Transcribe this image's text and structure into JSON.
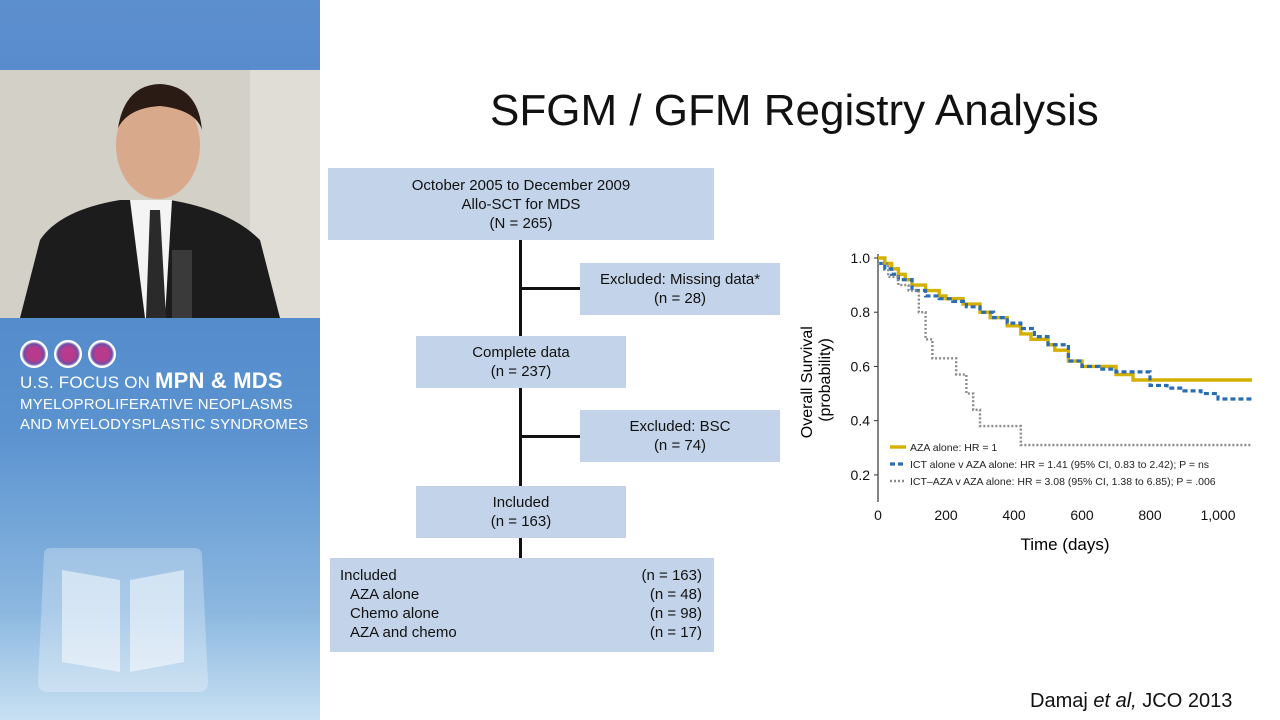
{
  "branding": {
    "line1_prefix": "U.S. FOCUS ON ",
    "line1_bold": "MPN & MDS",
    "line2": "MYELOPROLIFERATIVE NEOPLASMS",
    "line3": "AND MYELODYSPLASTIC SYNDROMES"
  },
  "slide": {
    "title": "SFGM / GFM Registry Analysis",
    "citation_author": "Damaj ",
    "citation_etal": "et al,",
    "citation_journal": " JCO 2013"
  },
  "flowchart": {
    "start": {
      "line1": "October 2005 to December 2009",
      "line2": "Allo-SCT for MDS",
      "line3": "(N = 265)"
    },
    "excluded_missing": {
      "line1": "Excluded: Missing data*",
      "line2": "(n = 28)"
    },
    "complete": {
      "line1": "Complete data",
      "line2": "(n = 237)"
    },
    "excluded_bsc": {
      "line1": "Excluded: BSC",
      "line2": "(n = 74)"
    },
    "included": {
      "line1": "Included",
      "line2": "(n = 163)"
    },
    "breakdown": [
      {
        "label": "Included",
        "count": "(n = 163)"
      },
      {
        "label": "AZA alone",
        "count": "(n = 48)"
      },
      {
        "label": "Chemo alone",
        "count": "(n = 98)"
      },
      {
        "label": "AZA and chemo",
        "count": "(n = 17)"
      }
    ]
  },
  "chart_data": {
    "type": "line",
    "xlabel": "Time (days)",
    "ylabel_line1": "Overall Survival",
    "ylabel_line2": "(probability)",
    "xlim": [
      0,
      1100
    ],
    "ylim": [
      0.1,
      1.0
    ],
    "x_ticks": [
      "0",
      "200",
      "400",
      "600",
      "800",
      "1,000"
    ],
    "x_tick_values": [
      0,
      200,
      400,
      600,
      800,
      1000
    ],
    "y_ticks": [
      "0.2",
      "0.4",
      "0.6",
      "0.8",
      "1.0"
    ],
    "y_tick_values": [
      0.2,
      0.4,
      0.6,
      0.8,
      1.0
    ],
    "legend_position": "bottom-left",
    "series": [
      {
        "name": "AZA alone: HR = 1",
        "color": "#d4b000",
        "style": "solid",
        "x": [
          0,
          20,
          40,
          60,
          80,
          100,
          140,
          180,
          200,
          250,
          300,
          330,
          380,
          420,
          450,
          500,
          520,
          560,
          600,
          650,
          700,
          750,
          800,
          900,
          1000,
          1100
        ],
        "y": [
          1.0,
          0.98,
          0.96,
          0.94,
          0.92,
          0.9,
          0.88,
          0.86,
          0.85,
          0.83,
          0.8,
          0.78,
          0.75,
          0.72,
          0.7,
          0.68,
          0.66,
          0.62,
          0.6,
          0.6,
          0.57,
          0.55,
          0.55,
          0.55,
          0.55,
          0.55
        ]
      },
      {
        "name": "ICT alone v AZA alone: HR = 1.41 (95% CI, 0.83 to 2.42); P = ns",
        "color": "#2a6db5",
        "style": "dashed",
        "x": [
          0,
          20,
          40,
          60,
          100,
          140,
          180,
          220,
          260,
          300,
          340,
          380,
          420,
          460,
          500,
          560,
          600,
          650,
          700,
          750,
          800,
          850,
          900,
          950,
          1000,
          1050,
          1100
        ],
        "y": [
          0.98,
          0.96,
          0.94,
          0.92,
          0.88,
          0.86,
          0.85,
          0.84,
          0.82,
          0.8,
          0.78,
          0.76,
          0.74,
          0.71,
          0.68,
          0.62,
          0.6,
          0.59,
          0.58,
          0.58,
          0.53,
          0.52,
          0.51,
          0.5,
          0.48,
          0.48,
          0.48
        ]
      },
      {
        "name": "ICT–AZA v AZA alone: HR = 3.08 (95% CI, 1.38 to 6.85); P = .006",
        "color": "#8a8a8a",
        "style": "dotted",
        "x": [
          0,
          30,
          60,
          90,
          120,
          140,
          160,
          200,
          230,
          260,
          280,
          300,
          320,
          360,
          400,
          420,
          500,
          600,
          700,
          800,
          900,
          1000,
          1100
        ],
        "y": [
          0.98,
          0.93,
          0.9,
          0.88,
          0.8,
          0.7,
          0.63,
          0.63,
          0.57,
          0.5,
          0.44,
          0.38,
          0.38,
          0.38,
          0.38,
          0.31,
          0.31,
          0.31,
          0.31,
          0.31,
          0.31,
          0.31,
          0.31
        ]
      }
    ]
  }
}
